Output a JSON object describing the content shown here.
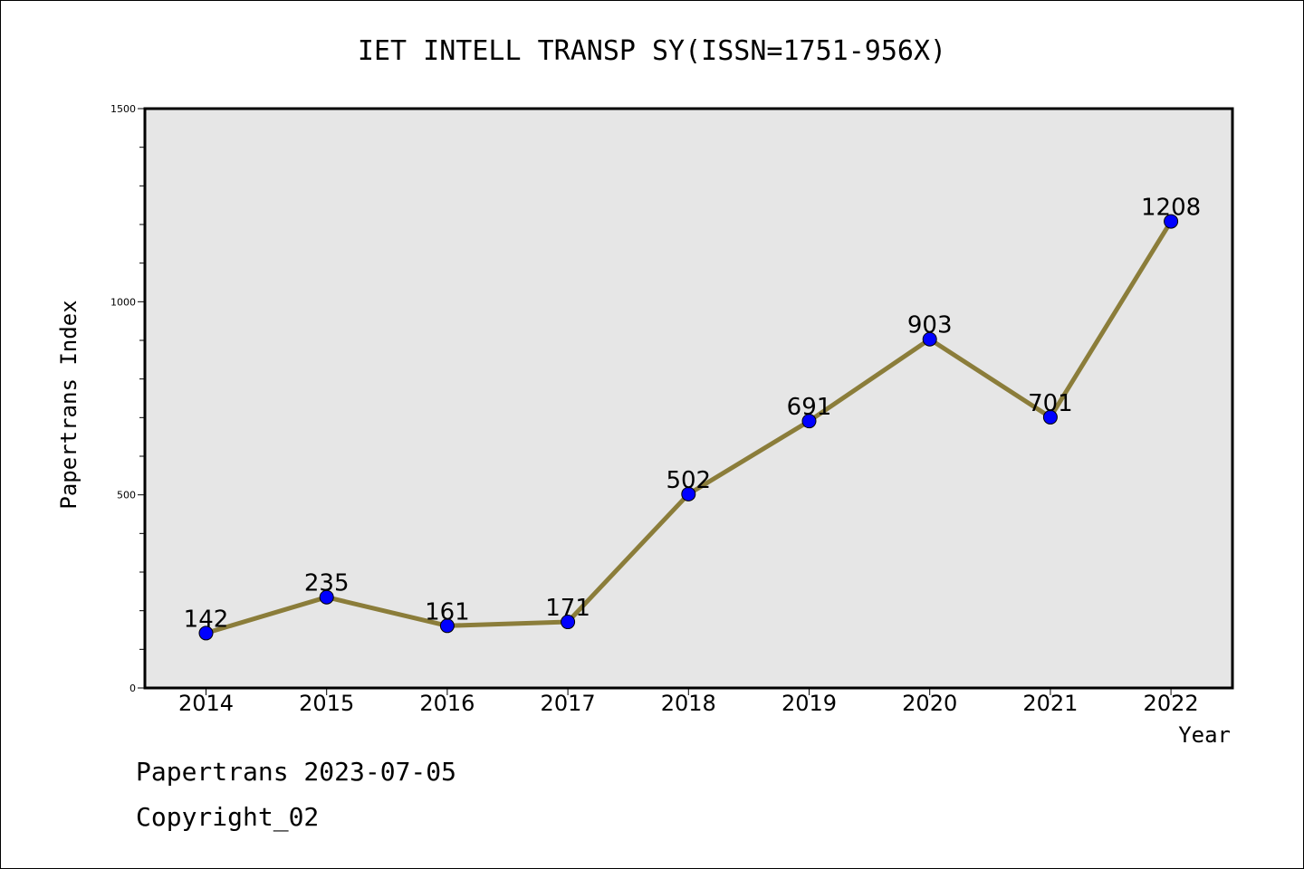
{
  "chart_data": {
    "type": "line",
    "title": "IET INTELL TRANSP SY(ISSN=1751-956X)",
    "xlabel": "Year",
    "ylabel": "Papertrans Index",
    "categories": [
      "2014",
      "2015",
      "2016",
      "2017",
      "2018",
      "2019",
      "2020",
      "2021",
      "2022"
    ],
    "values": [
      142,
      235,
      161,
      171,
      502,
      691,
      903,
      701,
      1208
    ],
    "ylim": [
      0,
      1500
    ],
    "yticks": [
      0,
      500,
      1000,
      1500
    ],
    "y_minor_step": 100,
    "grid": false,
    "legend": "none",
    "colors": {
      "line": "#8B7D3A",
      "marker": "#0000FF",
      "plot_background": "#E6E6E6"
    }
  },
  "footer": {
    "date_line": "Papertrans 2023-07-05",
    "copyright_line": "Copyright_02"
  }
}
